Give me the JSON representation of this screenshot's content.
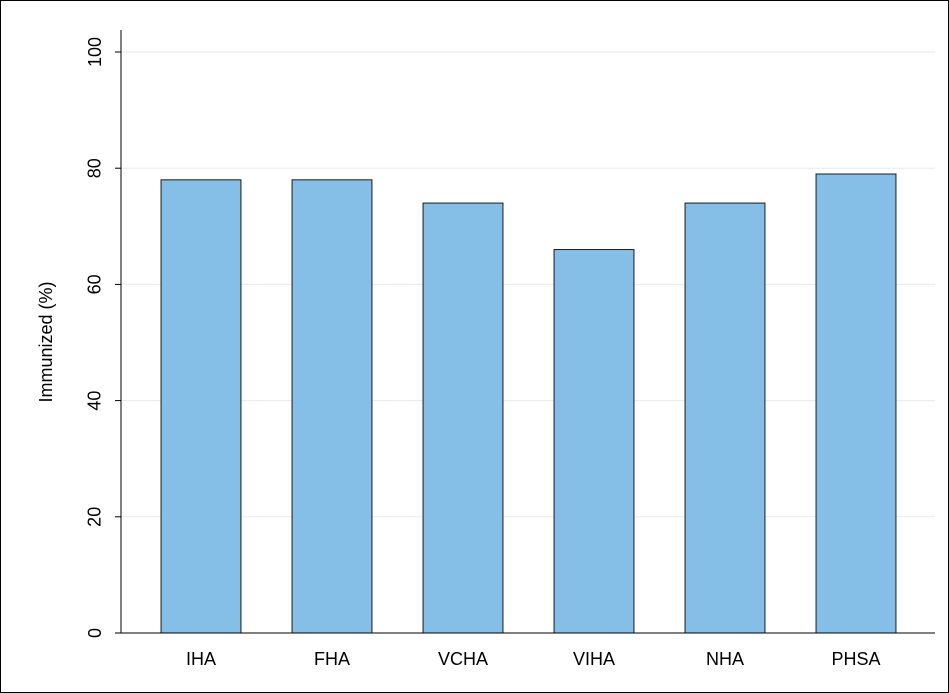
{
  "chart_data": {
    "type": "bar",
    "y_label": "Immunized (%)",
    "categories": [
      "IHA",
      "FHA",
      "VCHA",
      "VIHA",
      "NHA",
      "PHSA"
    ],
    "values": [
      78,
      78,
      74,
      66,
      74,
      79
    ],
    "color": "#85bfe8",
    "ylim": [
      0,
      100
    ],
    "yticks": [
      0,
      20,
      40,
      60,
      80,
      100
    ],
    "grid": true
  }
}
